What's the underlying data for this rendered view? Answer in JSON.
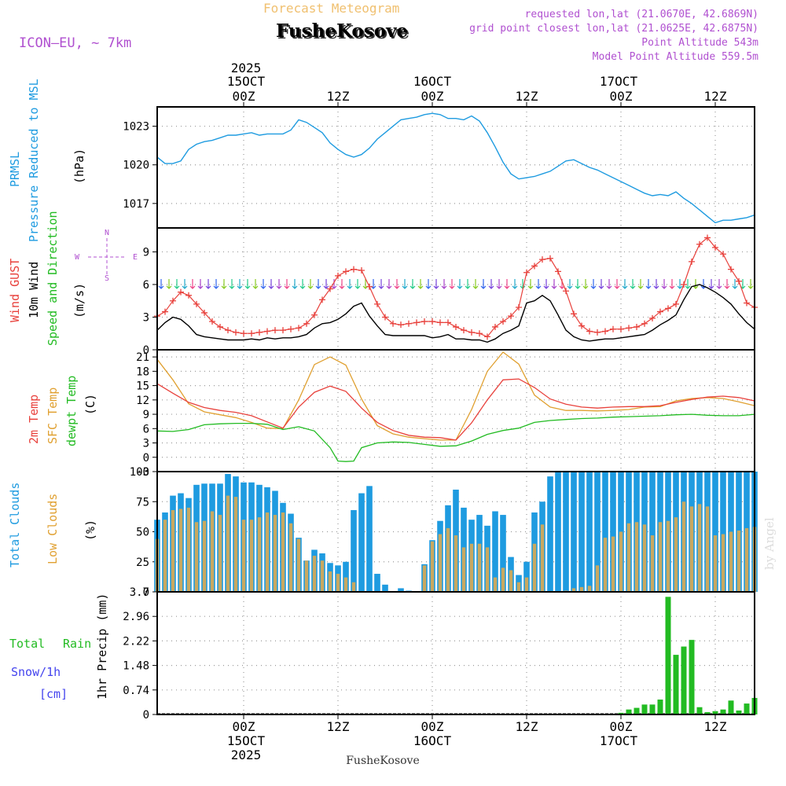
{
  "header": {
    "product": "Forecast Meteogram",
    "model": "ICON–EU, ~ 7km",
    "station": "FusheKosove",
    "requested": "requested lon,lat (21.0670E, 42.6869N)",
    "closest": "grid point closest lon,lat (21.0625E, 42.6875N)",
    "point_alt": "Point Altitude 543m",
    "model_alt": "Model Point Altitude 559.5m",
    "footer_station": "FusheKosove",
    "credit": "by Angel"
  },
  "colors": {
    "pressure": "#1e9be0",
    "gust": "#e8413c",
    "wind": "#000000",
    "direction_label": "#22bb22",
    "temp2m": "#e8413c",
    "sfc_temp": "#e0a030",
    "dewpt": "#22bb22",
    "total_clouds": "#1e9be0",
    "low_clouds": "#c8a860",
    "rain": "#22bb22",
    "snow": "#4444ee",
    "header_purple": "#b050d0",
    "header_orange": "#f0c070"
  },
  "time_axis": {
    "top_year": "2025",
    "top_dates": [
      "15OCT",
      "16OCT",
      "17OCT"
    ],
    "bottom_dates": [
      "15OCT",
      "16OCT",
      "17OCT"
    ],
    "bottom_year": "2025",
    "hour_labels": [
      "00Z",
      "12Z",
      "00Z",
      "12Z",
      "00Z",
      "12Z"
    ],
    "tick_hours": [
      0,
      12,
      24,
      36,
      48,
      60
    ],
    "hour_range": [
      -11,
      65
    ]
  },
  "chart_data": [
    {
      "type": "line",
      "panel": "pressure",
      "labels": [
        "PRMSL",
        "Pressure Reduced to MSL",
        "(hPa)"
      ],
      "ylim": [
        1015.1,
        1024.5
      ],
      "yticks": [
        1017,
        1020,
        1023
      ],
      "series": [
        {
          "name": "PRMSL",
          "x": [
            -11,
            -10,
            -9,
            -8,
            -7,
            -6,
            -5,
            -4,
            -3,
            -2,
            -1,
            0,
            1,
            2,
            3,
            4,
            5,
            6,
            7,
            8,
            9,
            10,
            11,
            12,
            13,
            14,
            15,
            16,
            17,
            18,
            19,
            20,
            21,
            22,
            23,
            24,
            25,
            26,
            27,
            28,
            29,
            30,
            31,
            32,
            33,
            34,
            35,
            36,
            37,
            38,
            39,
            40,
            41,
            42,
            43,
            44,
            45,
            46,
            47,
            48,
            49,
            50,
            51,
            52,
            53,
            54,
            55,
            56,
            57,
            58,
            59,
            60,
            61,
            62,
            63,
            64,
            65
          ],
          "values": [
            1020.6,
            1020.1,
            1020.1,
            1020.3,
            1021.2,
            1021.6,
            1021.8,
            1021.9,
            1022.1,
            1022.3,
            1022.3,
            1022.4,
            1022.5,
            1022.3,
            1022.4,
            1022.4,
            1022.4,
            1022.7,
            1023.5,
            1023.3,
            1022.9,
            1022.5,
            1021.7,
            1021.2,
            1020.8,
            1020.6,
            1020.8,
            1021.3,
            1022,
            1022.5,
            1023.0,
            1023.5,
            1023.6,
            1023.7,
            1023.9,
            1024.0,
            1023.9,
            1023.6,
            1023.6,
            1023.5,
            1023.8,
            1023.4,
            1022.5,
            1021.4,
            1020.2,
            1019.3,
            1018.9,
            1019.0,
            1019.1,
            1019.3,
            1019.5,
            1019.9,
            1020.3,
            1020.4,
            1020.1,
            1019.8,
            1019.6,
            1019.3,
            1019.0,
            1018.7,
            1018.4,
            1018.1,
            1017.8,
            1017.6,
            1017.7,
            1017.6,
            1017.9,
            1017.4,
            1017.0,
            1016.5,
            1016.0,
            1015.5,
            1015.7,
            1015.7,
            1015.8,
            1015.9,
            1016.1
          ]
        }
      ]
    },
    {
      "type": "line",
      "panel": "wind",
      "labels": [
        "Wind GUST",
        "10m Wind",
        "Speed and Direction",
        "(m/s)"
      ],
      "compass": [
        "N",
        "S",
        "W",
        "E"
      ],
      "ylim": [
        0,
        11.2
      ],
      "yticks": [
        0,
        3,
        6,
        9
      ],
      "series": [
        {
          "name": "Wind GUST",
          "x": [
            -11,
            -10,
            -9,
            -8,
            -7,
            -6,
            -5,
            -4,
            -3,
            -2,
            -1,
            0,
            1,
            2,
            3,
            4,
            5,
            6,
            7,
            8,
            9,
            10,
            11,
            12,
            13,
            14,
            15,
            16,
            17,
            18,
            19,
            20,
            21,
            22,
            23,
            24,
            25,
            26,
            27,
            28,
            29,
            30,
            31,
            32,
            33,
            34,
            35,
            36,
            37,
            38,
            39,
            40,
            41,
            42,
            43,
            44,
            45,
            46,
            47,
            48,
            49,
            50,
            51,
            52,
            53,
            54,
            55,
            56,
            57,
            58,
            59,
            60,
            61,
            62,
            63,
            64,
            65
          ],
          "values": [
            3.1,
            3.5,
            4.5,
            5.3,
            5.0,
            4.2,
            3.4,
            2.6,
            2.1,
            1.8,
            1.6,
            1.5,
            1.5,
            1.6,
            1.7,
            1.8,
            1.8,
            1.9,
            2.0,
            2.4,
            3.2,
            4.6,
            5.6,
            6.8,
            7.2,
            7.4,
            7.3,
            5.8,
            4.2,
            3.0,
            2.4,
            2.3,
            2.4,
            2.5,
            2.6,
            2.6,
            2.5,
            2.5,
            2.1,
            1.8,
            1.6,
            1.5,
            1.2,
            2.1,
            2.6,
            3.1,
            3.9,
            7.1,
            7.7,
            8.3,
            8.4,
            7.2,
            5.4,
            3.3,
            2.2,
            1.7,
            1.6,
            1.7,
            1.9,
            1.9,
            2.0,
            2.1,
            2.4,
            2.9,
            3.5,
            3.8,
            4.2,
            6.0,
            8.1,
            9.7,
            10.3,
            9.4,
            8.8,
            7.4,
            6.3,
            4.3,
            3.9
          ]
        },
        {
          "name": "10m Wind",
          "x": [
            -11,
            -10,
            -9,
            -8,
            -7,
            -6,
            -5,
            -4,
            -3,
            -2,
            -1,
            0,
            1,
            2,
            3,
            4,
            5,
            6,
            7,
            8,
            9,
            10,
            11,
            12,
            13,
            14,
            15,
            16,
            17,
            18,
            19,
            20,
            21,
            22,
            23,
            24,
            25,
            26,
            27,
            28,
            29,
            30,
            31,
            32,
            33,
            34,
            35,
            36,
            37,
            38,
            39,
            40,
            41,
            42,
            43,
            44,
            45,
            46,
            47,
            48,
            49,
            50,
            51,
            52,
            53,
            54,
            55,
            56,
            57,
            58,
            59,
            60,
            61,
            62,
            63,
            64,
            65
          ],
          "values": [
            1.8,
            2.5,
            3.0,
            2.8,
            2.2,
            1.4,
            1.2,
            1.1,
            1.0,
            0.9,
            0.9,
            0.9,
            1.0,
            0.9,
            1.1,
            1.0,
            1.1,
            1.1,
            1.2,
            1.4,
            2.0,
            2.4,
            2.5,
            2.8,
            3.3,
            4.0,
            4.3,
            3.1,
            2.2,
            1.4,
            1.3,
            1.3,
            1.3,
            1.3,
            1.3,
            1.1,
            1.2,
            1.4,
            1.0,
            1.0,
            0.9,
            0.9,
            0.7,
            1.0,
            1.5,
            1.8,
            2.2,
            4.3,
            4.5,
            5.0,
            4.5,
            3.2,
            1.8,
            1.2,
            0.9,
            0.8,
            0.9,
            1.0,
            1.0,
            1.1,
            1.2,
            1.3,
            1.4,
            1.8,
            2.3,
            2.7,
            3.2,
            4.6,
            5.8,
            6.0,
            5.7,
            5.3,
            4.8,
            4.2,
            3.3,
            2.5,
            1.9
          ]
        }
      ]
    },
    {
      "type": "line",
      "panel": "temperature",
      "labels": [
        "2m Temp",
        "SFC Temp",
        "dewpt Temp",
        "(C)"
      ],
      "ylim": [
        -3,
        22.5
      ],
      "yticks": [
        -3,
        0,
        3,
        6,
        9,
        12,
        15,
        18,
        21
      ],
      "series": [
        {
          "name": "2m Temp",
          "x": [
            -11,
            -9,
            -7,
            -5,
            -3,
            -1,
            1,
            3,
            5,
            7,
            9,
            11,
            13,
            15,
            17,
            19,
            21,
            23,
            25,
            27,
            29,
            31,
            33,
            35,
            37,
            39,
            41,
            43,
            45,
            47,
            49,
            51,
            53,
            55,
            57,
            59,
            61,
            63,
            65
          ],
          "values": [
            15.4,
            13.4,
            11.5,
            10.4,
            9.8,
            9.4,
            8.7,
            7.4,
            6.1,
            10.5,
            13.6,
            14.9,
            13.8,
            10.3,
            7.3,
            5.6,
            4.6,
            4.2,
            4.1,
            3.6,
            7.2,
            12.0,
            16.2,
            16.4,
            14.6,
            12.2,
            11.1,
            10.5,
            10.3,
            10.5,
            10.6,
            10.6,
            10.8,
            11.5,
            12.1,
            12.6,
            12.8,
            12.5,
            11.8
          ]
        },
        {
          "name": "SFC Temp",
          "x": [
            -11,
            -9,
            -7,
            -5,
            -3,
            -1,
            1,
            3,
            5,
            7,
            9,
            11,
            13,
            15,
            17,
            19,
            21,
            23,
            25,
            27,
            29,
            31,
            33,
            35,
            37,
            39,
            41,
            43,
            45,
            47,
            49,
            51,
            53,
            55,
            57,
            59,
            61,
            63,
            65
          ],
          "values": [
            20.5,
            16.2,
            11.2,
            9.5,
            8.9,
            8.3,
            7.3,
            6.1,
            6.0,
            12.0,
            19.4,
            21.0,
            19.3,
            12.2,
            6.6,
            4.9,
            4.2,
            3.9,
            3.6,
            3.6,
            10.0,
            18.0,
            22.0,
            19.5,
            13.0,
            10.5,
            9.8,
            9.8,
            9.7,
            9.8,
            10.0,
            10.5,
            10.6,
            11.8,
            12.3,
            12.5,
            12.3,
            11.6,
            10.8
          ]
        },
        {
          "name": "dewpt Temp",
          "x": [
            -11,
            -9,
            -7,
            -5,
            -3,
            -1,
            1,
            3,
            5,
            7,
            9,
            11,
            12,
            13,
            14,
            15,
            17,
            19,
            21,
            23,
            25,
            27,
            29,
            31,
            33,
            35,
            37,
            39,
            41,
            43,
            45,
            47,
            49,
            51,
            53,
            55,
            57,
            59,
            61,
            63,
            65
          ],
          "values": [
            5.5,
            5.4,
            5.8,
            6.8,
            7.0,
            7.1,
            7.1,
            6.9,
            5.8,
            6.4,
            5.5,
            2.0,
            -0.8,
            -0.9,
            -0.8,
            2.0,
            3.0,
            3.2,
            3.1,
            2.7,
            2.3,
            2.4,
            3.4,
            4.8,
            5.6,
            6.1,
            7.3,
            7.7,
            7.9,
            8.1,
            8.2,
            8.4,
            8.5,
            8.6,
            8.7,
            8.9,
            9.0,
            8.8,
            8.7,
            8.7,
            9.0
          ]
        }
      ]
    },
    {
      "type": "bar",
      "panel": "clouds",
      "labels": [
        "Total Clouds",
        "Low Clouds",
        "(%)"
      ],
      "ylim": [
        0,
        100
      ],
      "yticks": [
        0,
        25,
        50,
        75,
        100
      ],
      "x": [
        -11,
        -10,
        -9,
        -8,
        -7,
        -6,
        -5,
        -4,
        -3,
        -2,
        -1,
        0,
        1,
        2,
        3,
        4,
        5,
        6,
        7,
        8,
        9,
        10,
        11,
        12,
        13,
        14,
        15,
        16,
        17,
        18,
        19,
        20,
        21,
        22,
        23,
        24,
        25,
        26,
        27,
        28,
        29,
        30,
        31,
        32,
        33,
        34,
        35,
        36,
        37,
        38,
        39,
        40,
        41,
        42,
        43,
        44,
        45,
        46,
        47,
        48,
        49,
        50,
        51,
        52,
        53,
        54,
        55,
        56,
        57,
        58,
        59,
        60,
        61,
        62,
        63,
        64,
        65
      ],
      "series": [
        {
          "name": "Total Clouds",
          "values": [
            60,
            66,
            80,
            82,
            78,
            89,
            90,
            90,
            90,
            98,
            96,
            91,
            91,
            89,
            87,
            84,
            74,
            65,
            45,
            26,
            35,
            32,
            24,
            22,
            25,
            68,
            82,
            88,
            15,
            6,
            0,
            3,
            1,
            0,
            23,
            43,
            59,
            72,
            85,
            70,
            60,
            64,
            55,
            67,
            64,
            29,
            14,
            25,
            66,
            75,
            96,
            100,
            100,
            100,
            100,
            100,
            100,
            100,
            100,
            100,
            100,
            100,
            100,
            100,
            100,
            100,
            100,
            100,
            100,
            100,
            100,
            100,
            100,
            100,
            100,
            100,
            100
          ]
        },
        {
          "name": "Low Clouds",
          "values": [
            44,
            60,
            68,
            69,
            70,
            58,
            59,
            67,
            64,
            80,
            79,
            60,
            60,
            62,
            66,
            64,
            66,
            57,
            44,
            26,
            30,
            26,
            17,
            15,
            12,
            8,
            0,
            0,
            0,
            0,
            0,
            0,
            0,
            0,
            22,
            42,
            48,
            53,
            47,
            37,
            40,
            40,
            37,
            12,
            20,
            18,
            8,
            12,
            40,
            56,
            0,
            0,
            1,
            3,
            4,
            5,
            22,
            45,
            46,
            50,
            57,
            58,
            56,
            47,
            58,
            59,
            62,
            75,
            71,
            73,
            71,
            47,
            48,
            50,
            51,
            53,
            54
          ]
        }
      ]
    },
    {
      "type": "bar",
      "panel": "precip",
      "labels": [
        "Total",
        "Rain",
        "Snow/1h",
        "[cm]",
        "1hr Precip (mm)"
      ],
      "ylim": [
        0,
        3.7
      ],
      "yticks": [
        "0",
        "0.74",
        "1.48",
        "2.22",
        "2.96",
        "3.7"
      ],
      "x": [
        48,
        49,
        50,
        51,
        52,
        53,
        54,
        55,
        56,
        57,
        58,
        59,
        60,
        61,
        62,
        63,
        64,
        65
      ],
      "series": [
        {
          "name": "Total Rain",
          "values": [
            0.05,
            0.15,
            0.2,
            0.3,
            0.3,
            0.45,
            3.55,
            1.8,
            2.05,
            2.25,
            0.22,
            0.07,
            0.1,
            0.15,
            0.42,
            0.12,
            0.33,
            0.5
          ]
        }
      ]
    }
  ]
}
